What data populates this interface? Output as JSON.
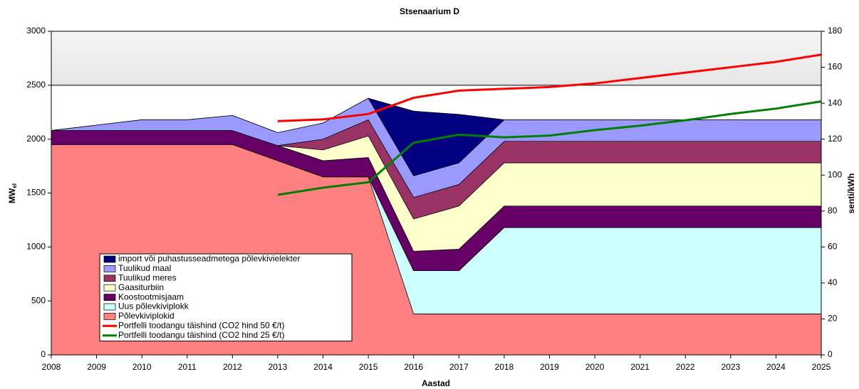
{
  "chart_data": {
    "type": "stacked-area-line",
    "title": "Stsenaarium D",
    "x_label": "Aastad",
    "y_label": "MW",
    "y_label_subscript": "el",
    "y2_label": "senti/kWh",
    "x": [
      2008,
      2009,
      2010,
      2011,
      2012,
      2013,
      2014,
      2015,
      2016,
      2017,
      2018,
      2019,
      2020,
      2021,
      2022,
      2023,
      2024,
      2025
    ],
    "xlim": [
      2008,
      2025
    ],
    "xticks": [
      2008,
      2009,
      2010,
      2011,
      2012,
      2013,
      2014,
      2015,
      2016,
      2017,
      2018,
      2019,
      2020,
      2021,
      2022,
      2023,
      2024,
      2025
    ],
    "ylim": [
      0,
      3000
    ],
    "yticks": [
      0,
      500,
      1000,
      1500,
      2000,
      2500,
      3000
    ],
    "y2lim": [
      0,
      180
    ],
    "y2ticks": [
      0,
      20,
      40,
      60,
      80,
      100,
      120,
      140,
      160,
      180
    ],
    "hline": 2500,
    "series": [
      {
        "name": "Põlevkiviplokid",
        "color": "#ff8080",
        "kind": "area",
        "values": [
          1950,
          1950,
          1950,
          1950,
          1950,
          1800,
          1650,
          1650,
          380,
          380,
          380,
          380,
          380,
          380,
          380,
          380,
          380,
          380
        ]
      },
      {
        "name": "Uus põlevkiviplokk",
        "color": "#ccffff",
        "kind": "area",
        "values": [
          0,
          0,
          0,
          0,
          0,
          0,
          0,
          0,
          400,
          400,
          800,
          800,
          800,
          800,
          800,
          800,
          800,
          800
        ]
      },
      {
        "name": "Koostootmisjaam",
        "color": "#660066",
        "kind": "area",
        "values": [
          130,
          130,
          130,
          130,
          130,
          140,
          150,
          180,
          180,
          200,
          200,
          200,
          200,
          200,
          200,
          200,
          200,
          200
        ]
      },
      {
        "name": "Gaasiturbiin",
        "color": "#ffffcc",
        "kind": "area",
        "values": [
          0,
          0,
          0,
          0,
          0,
          0,
          100,
          200,
          300,
          400,
          400,
          400,
          400,
          400,
          400,
          400,
          400,
          400
        ]
      },
      {
        "name": "Tuulikud meres",
        "color": "#993366",
        "kind": "area",
        "values": [
          0,
          0,
          0,
          0,
          0,
          0,
          100,
          150,
          200,
          200,
          200,
          200,
          200,
          200,
          200,
          200,
          200,
          200
        ]
      },
      {
        "name": "Tuulikud maal",
        "color": "#9999ff",
        "kind": "area",
        "values": [
          0,
          50,
          100,
          100,
          140,
          120,
          150,
          200,
          200,
          200,
          200,
          200,
          200,
          200,
          200,
          200,
          200,
          200
        ]
      },
      {
        "name": "import või puhastusseadmetega põlevkivielekter",
        "color": "#000080",
        "kind": "area",
        "values": [
          0,
          0,
          0,
          0,
          0,
          0,
          0,
          0,
          600,
          450,
          0,
          0,
          0,
          0,
          0,
          0,
          0,
          0
        ]
      },
      {
        "name": "Portfelli toodangu täishind (CO2 hind 50 €/t)",
        "color": "#ff0000",
        "kind": "line",
        "axis": "y2",
        "values": [
          null,
          null,
          null,
          null,
          null,
          130,
          131,
          134,
          143,
          147,
          148,
          149,
          151,
          154,
          157,
          160,
          163,
          167
        ]
      },
      {
        "name": "Portfelli toodangu täishind (CO2 hind 25 €/t)",
        "color": "#008000",
        "kind": "line",
        "axis": "y2",
        "values": [
          null,
          null,
          null,
          null,
          null,
          89,
          93,
          96,
          118,
          122.5,
          121,
          122,
          125,
          127.5,
          130.5,
          134,
          137,
          141
        ]
      }
    ]
  }
}
